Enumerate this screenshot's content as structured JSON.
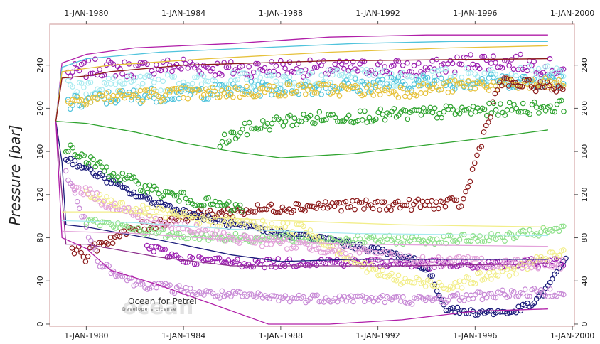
{
  "chart_data": {
    "type": "scatter",
    "title": "",
    "ylabel": "Pressure [bar]",
    "xlabel": "",
    "x_tick_labels": [
      "1-JAN-1980",
      "1-JAN-1984",
      "1-JAN-1988",
      "1-JAN-1992",
      "1-JAN-1996",
      "1-JAN-2000"
    ],
    "x_ticks": [
      "1980-01-01",
      "1984-01-01",
      "1988-01-01",
      "1992-01-01",
      "1996-01-01",
      "2000-01-01"
    ],
    "xlim": [
      "1978-07-01",
      "2000-02-01"
    ],
    "y_ticks": [
      0,
      40,
      80,
      120,
      160,
      200,
      240
    ],
    "ylim": [
      -2,
      278
    ],
    "watermark": {
      "line1": "Ocean for Petrel",
      "line2": "Developers License",
      "logo": "ocean"
    },
    "colors": {
      "frame": "#d6a6a6",
      "background": "#ffffff",
      "purple": "#9b1fb0",
      "light_purple": "#c88ad6",
      "pink": "#e3a2da",
      "cyan": "#4fc3dc",
      "light_cyan": "#a8ebf0",
      "yellow": "#e6c13a",
      "light_yellow": "#f2ee8a",
      "green": "#2fa32f",
      "light_green": "#8ee08a",
      "dark_red": "#8b1a1a",
      "navy": "#1a1a7a",
      "magenta_line": "#b01ea8",
      "violet_line": "#8c2f8c"
    },
    "series": [
      {
        "kind": "markers",
        "color_key": "purple",
        "points": [
          [
            "1979-04-01",
            232
          ],
          [
            "1980-06-01",
            238
          ],
          [
            "1982-01-01",
            236
          ],
          [
            "1984-01-01",
            240
          ],
          [
            "1986-01-01",
            236
          ],
          [
            "1988-01-01",
            238
          ],
          [
            "1990-01-01",
            236
          ],
          [
            "1992-01-01",
            238
          ],
          [
            "1994-01-01",
            236
          ],
          [
            "1996-01-01",
            244
          ],
          [
            "1998-01-01",
            242
          ],
          [
            "1999-09-01",
            236
          ]
        ],
        "spread": 8
      },
      {
        "kind": "markers",
        "color_key": "light_cyan",
        "points": [
          [
            "1979-04-01",
            218
          ],
          [
            "1981-01-01",
            222
          ],
          [
            "1984-01-01",
            224
          ],
          [
            "1987-01-01",
            226
          ],
          [
            "1990-01-01",
            228
          ],
          [
            "1993-01-01",
            228
          ],
          [
            "1996-01-01",
            230
          ],
          [
            "1999-09-01",
            232
          ]
        ],
        "spread": 8
      },
      {
        "kind": "markers",
        "color_key": "cyan",
        "points": [
          [
            "1979-04-01",
            204
          ],
          [
            "1981-01-01",
            210
          ],
          [
            "1984-01-01",
            214
          ],
          [
            "1987-01-01",
            218
          ],
          [
            "1990-01-01",
            220
          ],
          [
            "1994-01-01",
            224
          ],
          [
            "1999-09-01",
            226
          ]
        ],
        "spread": 7
      },
      {
        "kind": "markers",
        "color_key": "yellow",
        "points": [
          [
            "1979-04-01",
            208
          ],
          [
            "1982-01-01",
            212
          ],
          [
            "1985-01-01",
            214
          ],
          [
            "1989-01-01",
            218
          ],
          [
            "1993-01-01",
            216
          ],
          [
            "1996-01-01",
            222
          ],
          [
            "1999-09-01",
            222
          ]
        ],
        "spread": 6
      },
      {
        "kind": "markers",
        "color_key": "green",
        "points": [
          [
            "1985-07-01",
            168
          ],
          [
            "1986-07-01",
            180
          ],
          [
            "1988-01-01",
            188
          ],
          [
            "1990-01-01",
            192
          ],
          [
            "1993-01-01",
            194
          ],
          [
            "1996-01-01",
            198
          ],
          [
            "1999-09-01",
            202
          ]
        ],
        "spread": 6
      },
      {
        "kind": "markers",
        "color_key": "dark_red",
        "points": [
          [
            "1979-06-01",
            72
          ],
          [
            "1980-01-01",
            62
          ],
          [
            "1980-07-01",
            74
          ],
          [
            "1982-01-01",
            88
          ],
          [
            "1984-01-01",
            100
          ],
          [
            "1986-01-01",
            104
          ],
          [
            "1988-01-01",
            108
          ],
          [
            "1990-01-01",
            110
          ],
          [
            "1992-01-01",
            110
          ],
          [
            "1995-07-01",
            112
          ],
          [
            "1997-01-01",
            224
          ],
          [
            "1998-01-01",
            222
          ],
          [
            "1999-09-01",
            218
          ]
        ],
        "spread": 5
      },
      {
        "kind": "markers",
        "color_key": "navy",
        "points": [
          [
            "1979-03-01",
            154
          ],
          [
            "1980-07-01",
            138
          ],
          [
            "1982-01-01",
            120
          ],
          [
            "1984-01-01",
            104
          ],
          [
            "1986-01-01",
            92
          ],
          [
            "1988-01-01",
            84
          ],
          [
            "1990-01-01",
            78
          ],
          [
            "1992-01-01",
            68
          ],
          [
            "1993-07-01",
            60
          ],
          [
            "1994-03-01",
            46
          ],
          [
            "1994-10-01",
            16
          ],
          [
            "1995-07-01",
            11
          ],
          [
            "1997-07-01",
            11
          ],
          [
            "1998-07-01",
            20
          ],
          [
            "1999-03-01",
            40
          ],
          [
            "1999-10-01",
            62
          ]
        ],
        "spread": 3
      },
      {
        "kind": "markers",
        "color_key": "green",
        "points": [
          [
            "1979-03-01",
            164
          ],
          [
            "1981-01-01",
            140
          ],
          [
            "1983-01-01",
            122
          ],
          [
            "1985-01-01",
            112
          ],
          [
            "1986-07-01",
            106
          ]
        ],
        "spread": 5
      },
      {
        "kind": "markers",
        "color_key": "purple",
        "points": [
          [
            "1982-07-01",
            72
          ],
          [
            "1984-01-01",
            60
          ],
          [
            "1987-01-01",
            56
          ],
          [
            "1990-01-01",
            58
          ],
          [
            "1993-01-01",
            56
          ],
          [
            "1996-01-01",
            54
          ],
          [
            "1999-09-01",
            58
          ]
        ],
        "spread": 4
      },
      {
        "kind": "markers",
        "color_key": "light_purple",
        "points": [
          [
            "1979-03-01",
            142
          ],
          [
            "1980-01-01",
            90
          ],
          [
            "1980-07-01",
            58
          ],
          [
            "1982-01-01",
            38
          ],
          [
            "1985-01-01",
            28
          ],
          [
            "1988-01-01",
            24
          ],
          [
            "1991-01-01",
            24
          ],
          [
            "1994-01-01",
            22
          ],
          [
            "1997-01-01",
            28
          ],
          [
            "1999-09-01",
            30
          ]
        ],
        "spread": 4
      },
      {
        "kind": "markers",
        "color_key": "light_green",
        "points": [
          [
            "1980-01-01",
            96
          ],
          [
            "1983-01-01",
            84
          ],
          [
            "1986-01-01",
            80
          ],
          [
            "1990-01-01",
            78
          ],
          [
            "1994-01-01",
            78
          ],
          [
            "1997-01-01",
            80
          ],
          [
            "1999-09-01",
            88
          ]
        ],
        "spread": 4
      },
      {
        "kind": "markers",
        "color_key": "light_yellow",
        "points": [
          [
            "1980-01-01",
            120
          ],
          [
            "1982-01-01",
            106
          ],
          [
            "1985-01-01",
            96
          ],
          [
            "1989-01-01",
            88
          ],
          [
            "1991-07-01",
            52
          ],
          [
            "1993-01-01",
            40
          ],
          [
            "1995-01-01",
            36
          ],
          [
            "1997-07-01",
            50
          ],
          [
            "1999-09-01",
            66
          ]
        ],
        "spread": 5
      },
      {
        "kind": "markers",
        "color_key": "pink",
        "points": [
          [
            "1979-06-01",
            130
          ],
          [
            "1981-01-01",
            110
          ],
          [
            "1983-01-01",
            94
          ],
          [
            "1986-01-01",
            80
          ],
          [
            "1990-01-01",
            70
          ],
          [
            "1994-01-01",
            58
          ],
          [
            "1999-09-01",
            56
          ]
        ],
        "spread": 5
      },
      {
        "kind": "line",
        "color_key": "magenta_line",
        "points": [
          [
            "1978-10-01",
            188
          ],
          [
            "1979-01-01",
            242
          ],
          [
            "1980-01-01",
            250
          ],
          [
            "1982-01-01",
            256
          ],
          [
            "1986-01-01",
            260
          ],
          [
            "1990-01-01",
            266
          ],
          [
            "1994-01-01",
            268
          ],
          [
            "1999-01-01",
            268
          ]
        ]
      },
      {
        "kind": "line",
        "color_key": "cyan",
        "points": [
          [
            "1978-10-01",
            188
          ],
          [
            "1979-01-01",
            238
          ],
          [
            "1980-01-01",
            246
          ],
          [
            "1983-01-01",
            252
          ],
          [
            "1987-01-01",
            256
          ],
          [
            "1991-01-01",
            260
          ],
          [
            "1995-01-01",
            262
          ],
          [
            "1999-01-01",
            262
          ]
        ]
      },
      {
        "kind": "line",
        "color_key": "yellow",
        "points": [
          [
            "1978-10-01",
            188
          ],
          [
            "1979-01-01",
            234
          ],
          [
            "1981-01-01",
            240
          ],
          [
            "1985-01-01",
            246
          ],
          [
            "1990-01-01",
            252
          ],
          [
            "1995-01-01",
            256
          ],
          [
            "1999-01-01",
            258
          ]
        ]
      },
      {
        "kind": "line",
        "color_key": "dark_red",
        "points": [
          [
            "1978-10-01",
            188
          ],
          [
            "1979-01-01",
            228
          ],
          [
            "1980-01-01",
            230
          ],
          [
            "1981-01-01",
            234
          ],
          [
            "1984-01-01",
            240
          ],
          [
            "1990-01-01",
            244
          ],
          [
            "1999-01-01",
            246
          ]
        ]
      },
      {
        "kind": "line",
        "color_key": "green",
        "points": [
          [
            "1978-10-01",
            188
          ],
          [
            "1980-01-01",
            186
          ],
          [
            "1982-01-01",
            178
          ],
          [
            "1984-01-01",
            168
          ],
          [
            "1986-01-01",
            160
          ],
          [
            "1988-01-01",
            154
          ],
          [
            "1991-01-01",
            158
          ],
          [
            "1994-01-01",
            166
          ],
          [
            "1997-01-01",
            174
          ],
          [
            "1999-01-01",
            180
          ]
        ]
      },
      {
        "kind": "line",
        "color_key": "navy",
        "points": [
          [
            "1978-10-01",
            188
          ],
          [
            "1979-01-01",
            150
          ],
          [
            "1979-03-01",
            92
          ],
          [
            "1980-01-01",
            90
          ],
          [
            "1983-01-01",
            78
          ],
          [
            "1986-01-01",
            64
          ],
          [
            "1988-01-01",
            58
          ],
          [
            "1991-01-01",
            60
          ],
          [
            "1995-01-01",
            60
          ],
          [
            "1999-01-01",
            60
          ]
        ]
      },
      {
        "kind": "line",
        "color_key": "violet_line",
        "points": [
          [
            "1978-10-01",
            188
          ],
          [
            "1979-01-01",
            120
          ],
          [
            "1979-03-01",
            74
          ],
          [
            "1980-01-01",
            74
          ],
          [
            "1983-01-01",
            62
          ],
          [
            "1986-01-01",
            54
          ],
          [
            "1989-01-01",
            54
          ],
          [
            "1993-01-01",
            54
          ],
          [
            "1999-01-01",
            56
          ]
        ]
      },
      {
        "kind": "line",
        "color_key": "magenta_line",
        "points": [
          [
            "1978-10-01",
            188
          ],
          [
            "1979-01-01",
            80
          ],
          [
            "1980-01-01",
            70
          ],
          [
            "1981-01-01",
            50
          ],
          [
            "1983-01-01",
            36
          ],
          [
            "1985-01-01",
            20
          ],
          [
            "1986-07-01",
            8
          ],
          [
            "1987-07-01",
            0
          ],
          [
            "1990-01-01",
            0
          ],
          [
            "1993-01-01",
            4
          ],
          [
            "1996-01-01",
            12
          ],
          [
            "1999-01-01",
            14
          ]
        ]
      },
      {
        "kind": "line",
        "color_key": "light_yellow",
        "points": [
          [
            "1979-01-01",
            104
          ],
          [
            "1981-01-01",
            104
          ],
          [
            "1984-01-01",
            100
          ],
          [
            "1988-01-01",
            96
          ],
          [
            "1993-01-01",
            92
          ],
          [
            "1999-01-01",
            90
          ]
        ]
      },
      {
        "kind": "line",
        "color_key": "light_cyan",
        "points": [
          [
            "1979-01-01",
            96
          ],
          [
            "1982-01-01",
            94
          ],
          [
            "1986-01-01",
            88
          ],
          [
            "1991-01-01",
            84
          ],
          [
            "1999-01-01",
            82
          ]
        ]
      },
      {
        "kind": "line",
        "color_key": "pink",
        "points": [
          [
            "1979-01-01",
            86
          ],
          [
            "1982-01-01",
            84
          ],
          [
            "1986-01-01",
            78
          ],
          [
            "1991-01-01",
            74
          ],
          [
            "1999-01-01",
            72
          ]
        ]
      }
    ]
  }
}
